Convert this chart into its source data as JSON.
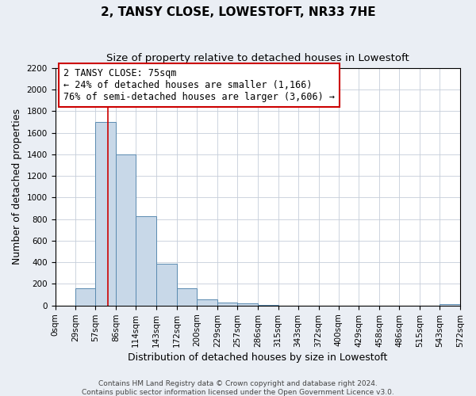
{
  "title": "2, TANSY CLOSE, LOWESTOFT, NR33 7HE",
  "subtitle": "Size of property relative to detached houses in Lowestoft",
  "xlabel": "Distribution of detached houses by size in Lowestoft",
  "ylabel": "Number of detached properties",
  "bin_edges": [
    0,
    29,
    57,
    86,
    114,
    143,
    172,
    200,
    229,
    257,
    286,
    315,
    343,
    372,
    400,
    429,
    458,
    486,
    515,
    543,
    572
  ],
  "bin_labels": [
    "0sqm",
    "29sqm",
    "57sqm",
    "86sqm",
    "114sqm",
    "143sqm",
    "172sqm",
    "200sqm",
    "229sqm",
    "257sqm",
    "286sqm",
    "315sqm",
    "343sqm",
    "372sqm",
    "400sqm",
    "429sqm",
    "458sqm",
    "486sqm",
    "515sqm",
    "543sqm",
    "572sqm"
  ],
  "counts": [
    0,
    160,
    1700,
    1400,
    830,
    385,
    160,
    60,
    30,
    20,
    5,
    0,
    0,
    0,
    0,
    0,
    0,
    0,
    0,
    10
  ],
  "property_size": 75,
  "vline_x": 75,
  "bar_color": "#c8d8e8",
  "bar_edge_color": "#5a8ab0",
  "vline_color": "#cc0000",
  "annotation_line1": "2 TANSY CLOSE: 75sqm",
  "annotation_line2": "← 24% of detached houses are smaller (1,166)",
  "annotation_line3": "76% of semi-detached houses are larger (3,606) →",
  "annotation_box_color": "#ffffff",
  "annotation_box_edge": "#cc0000",
  "ylim": [
    0,
    2200
  ],
  "yticks": [
    0,
    200,
    400,
    600,
    800,
    1000,
    1200,
    1400,
    1600,
    1800,
    2000,
    2200
  ],
  "footer1": "Contains HM Land Registry data © Crown copyright and database right 2024.",
  "footer2": "Contains public sector information licensed under the Open Government Licence v3.0.",
  "background_color": "#eaeef4",
  "plot_background": "#ffffff",
  "grid_color": "#c5cdd9",
  "title_fontsize": 11,
  "subtitle_fontsize": 9.5,
  "axis_label_fontsize": 9,
  "tick_fontsize": 7.5,
  "annotation_fontsize": 8.5,
  "footer_fontsize": 6.5
}
